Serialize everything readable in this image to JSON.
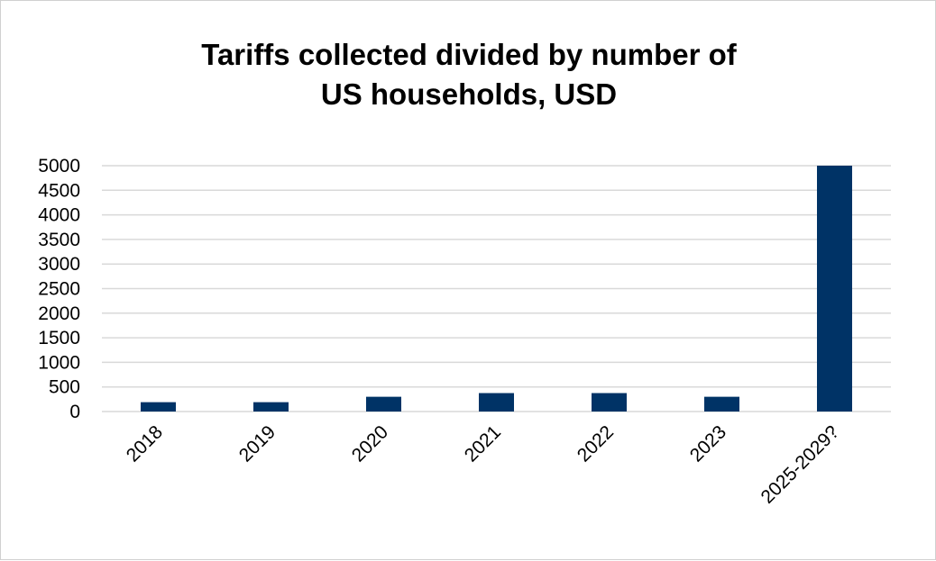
{
  "chart_data": {
    "type": "bar",
    "title_lines": [
      "Tariffs collected divided by number of",
      "US households, USD"
    ],
    "categories": [
      "2018",
      "2019",
      "2020",
      "2021",
      "2022",
      "2023",
      "2025-2029?"
    ],
    "values": [
      190,
      190,
      300,
      375,
      375,
      300,
      5000
    ],
    "ylim": [
      0,
      5000
    ],
    "yticks": [
      "0",
      "500",
      "1000",
      "1500",
      "2000",
      "2500",
      "3000",
      "3500",
      "4000",
      "4500",
      "5000"
    ],
    "xlabel": "",
    "ylabel": "",
    "grid": true,
    "legend": "none",
    "bar_color": "#003366"
  }
}
